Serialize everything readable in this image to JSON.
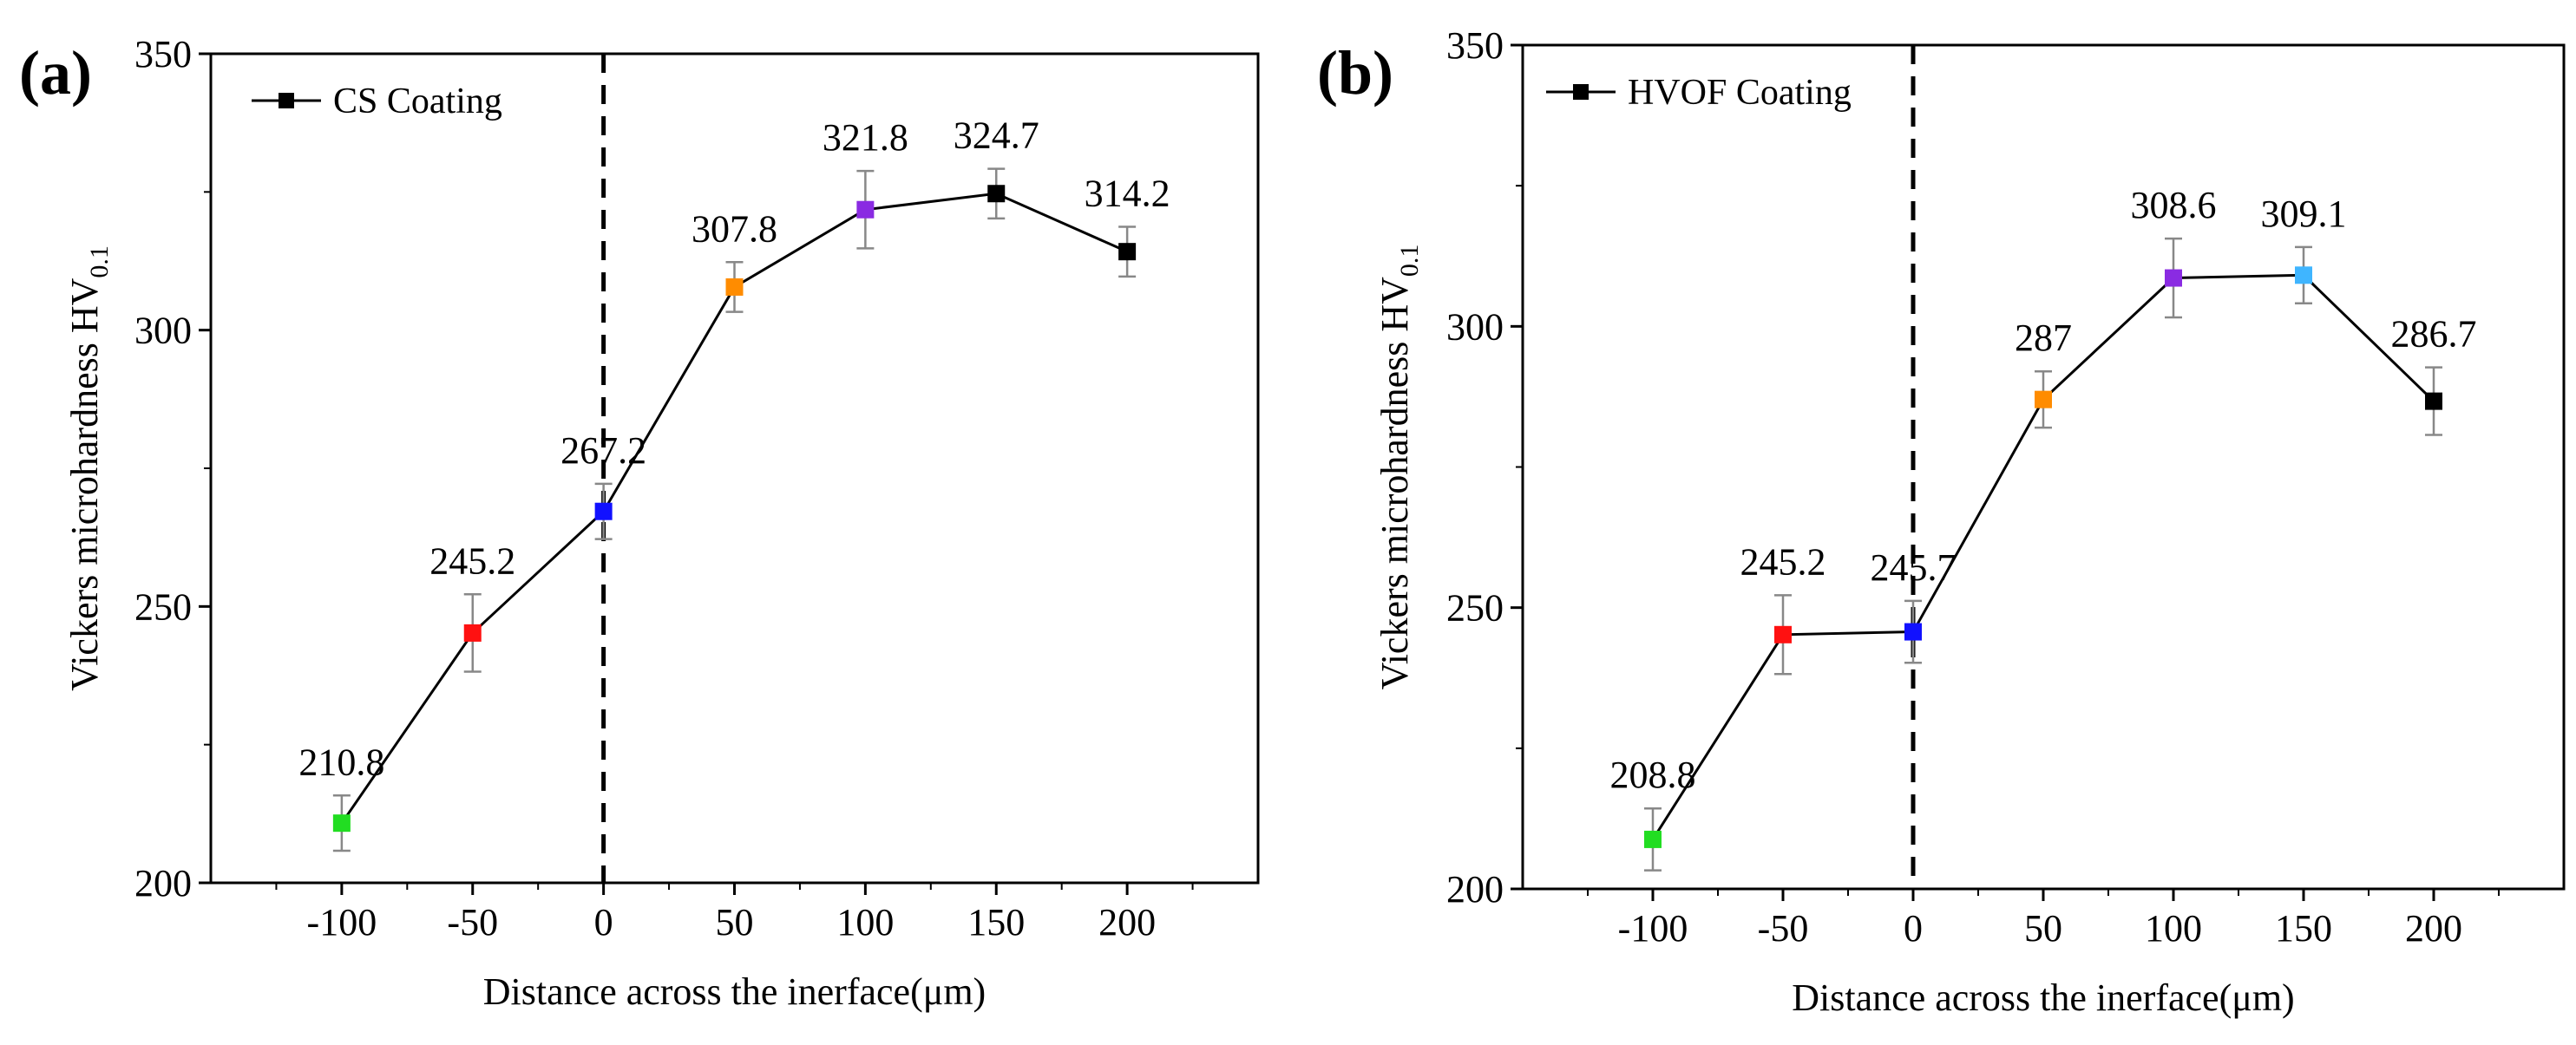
{
  "chart_data": [
    {
      "type": "line",
      "panel_label": "(a)",
      "legend": "CS Coating",
      "legend_placement": "top-left",
      "xlabel": "Distance across the inerface(μm)",
      "ylabel_main": "Vickers microhardness HV",
      "ylabel_sub": "0.1",
      "x": [
        -100,
        -50,
        0,
        50,
        100,
        150,
        200
      ],
      "values": [
        210.8,
        245.2,
        267.2,
        307.8,
        321.8,
        324.7,
        314.2
      ],
      "data_labels": [
        "210.8",
        "245.2",
        "267.2",
        "307.8",
        "321.8",
        "324.7",
        "314.2"
      ],
      "error": [
        5,
        7,
        5,
        4.5,
        7,
        4.5,
        4.5
      ],
      "point_colors": [
        "#22dd22",
        "#ff1111",
        "#1111ff",
        "#ff8c00",
        "#8a2be2",
        "#000000",
        "#000000"
      ],
      "line_color": "#000000",
      "xlim": [
        -150,
        250
      ],
      "ylim": [
        200,
        350
      ],
      "xticks": [
        -100,
        -50,
        0,
        50,
        100,
        150,
        200
      ],
      "xtick_labels": [
        "-100",
        "-50",
        "0",
        "50",
        "100",
        "150",
        "200"
      ],
      "yticks": [
        200,
        250,
        300,
        350
      ],
      "ytick_labels": [
        "200",
        "250",
        "300",
        "350"
      ],
      "reference_line_x": 0,
      "grid": false
    },
    {
      "type": "line",
      "panel_label": "(b)",
      "legend": "HVOF Coating",
      "legend_placement": "top-left",
      "xlabel": "Distance across the inerface(μm)",
      "ylabel_main": "Vickers microhardness HV",
      "ylabel_sub": "0.1",
      "x": [
        -100,
        -50,
        0,
        50,
        100,
        150,
        200
      ],
      "values": [
        208.8,
        245.2,
        245.7,
        287,
        308.6,
        309.1,
        286.7
      ],
      "data_labels": [
        "208.8",
        "245.2",
        "245.7",
        "287",
        "308.6",
        "309.1",
        "286.7"
      ],
      "error": [
        5.5,
        7,
        5.5,
        5,
        7,
        5,
        6
      ],
      "point_colors": [
        "#22dd22",
        "#ff1111",
        "#1111ff",
        "#ff8c00",
        "#8a2be2",
        "#3fb5ff",
        "#000000"
      ],
      "line_color": "#000000",
      "xlim": [
        -150,
        250
      ],
      "ylim": [
        200,
        350
      ],
      "xticks": [
        -100,
        -50,
        0,
        50,
        100,
        150,
        200
      ],
      "xtick_labels": [
        "-100",
        "-50",
        "0",
        "50",
        "100",
        "150",
        "200"
      ],
      "yticks": [
        200,
        250,
        300,
        350
      ],
      "ytick_labels": [
        "200",
        "250",
        "300",
        "350"
      ],
      "reference_line_x": 0,
      "grid": false
    }
  ]
}
